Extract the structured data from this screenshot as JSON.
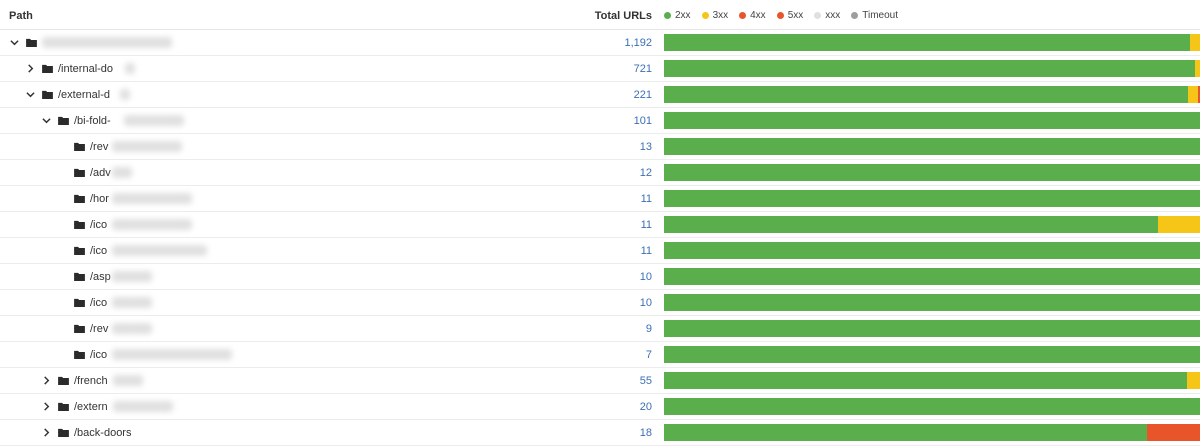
{
  "header": {
    "path_label": "Path",
    "total_label": "Total URLs"
  },
  "colors": {
    "2xx": "#5aae4b",
    "3xx": "#f5c518",
    "4xx": "#e8552b",
    "5xx": "#e8552b",
    "xxx": "#e0e0e0",
    "Timeout": "#9e9e9e"
  },
  "legend": [
    {
      "label": "2xx",
      "color": "#5aae4b"
    },
    {
      "label": "3xx",
      "color": "#f5c518"
    },
    {
      "label": "4xx",
      "color": "#e8552b"
    },
    {
      "label": "5xx",
      "color": "#e8552b"
    },
    {
      "label": "xxx",
      "color": "#e0e0e0"
    },
    {
      "label": "Timeout",
      "color": "#9e9e9e"
    }
  ],
  "rows": [
    {
      "name": "",
      "expand": "expanded",
      "total": "1,192",
      "status": {
        "2xx": 0.981,
        "3xx": 0.019
      }
    },
    {
      "name": "/internal-do",
      "expand": "collapsed",
      "total": "721",
      "status": {
        "2xx": 0.99,
        "3xx": 0.01
      }
    },
    {
      "name": "/external-d",
      "expand": "expanded",
      "total": "221",
      "status": {
        "2xx": 0.977,
        "3xx": 0.019,
        "5xx": 0.004
      }
    },
    {
      "name": "/bi-fold-",
      "expand": "expanded",
      "total": "101",
      "status": {
        "2xx": 1.0
      }
    },
    {
      "name": "/rev",
      "expand": "none",
      "total": "13",
      "status": {
        "2xx": 1.0
      }
    },
    {
      "name": "/adv",
      "expand": "none",
      "total": "12",
      "status": {
        "2xx": 1.0
      }
    },
    {
      "name": "/hor",
      "expand": "none",
      "total": "11",
      "status": {
        "2xx": 1.0
      }
    },
    {
      "name": "/ico",
      "expand": "none",
      "total": "11",
      "status": {
        "2xx": 0.921,
        "3xx": 0.079
      }
    },
    {
      "name": "/ico",
      "expand": "none",
      "total": "11",
      "status": {
        "2xx": 1.0
      }
    },
    {
      "name": "/asp",
      "expand": "none",
      "total": "10",
      "status": {
        "2xx": 1.0
      }
    },
    {
      "name": "/ico",
      "expand": "none",
      "total": "10",
      "status": {
        "2xx": 1.0
      }
    },
    {
      "name": "/rev",
      "expand": "none",
      "total": "9",
      "status": {
        "2xx": 1.0
      }
    },
    {
      "name": "/ico",
      "expand": "none",
      "total": "7",
      "status": {
        "2xx": 1.0
      }
    },
    {
      "name": "/french",
      "expand": "collapsed",
      "total": "55",
      "status": {
        "2xx": 0.976,
        "3xx": 0.024
      }
    },
    {
      "name": "/extern",
      "expand": "collapsed",
      "total": "20",
      "status": {
        "2xx": 1.0
      }
    },
    {
      "name": "/back-doors",
      "expand": "collapsed",
      "total": "18",
      "status": {
        "2xx": 0.902,
        "5xx": 0.098
      }
    }
  ]
}
